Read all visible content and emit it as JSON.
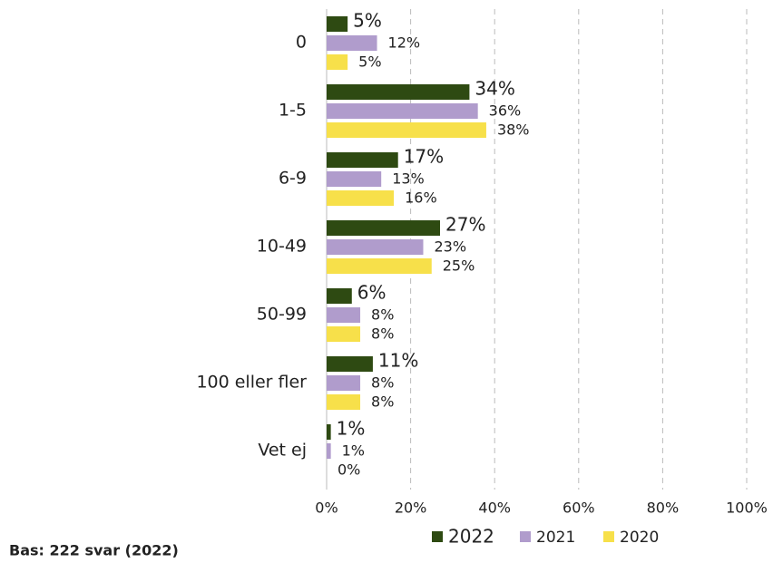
{
  "chart_data": {
    "type": "barh",
    "categories": [
      "0",
      "1-5",
      "6-9",
      "10-49",
      "50-99",
      "100 eller fler",
      "Vet ej"
    ],
    "series": [
      {
        "name": "2022",
        "color": "#2e4a12",
        "values": [
          5,
          34,
          17,
          27,
          6,
          11,
          1
        ],
        "value_labels": [
          "5%",
          "34%",
          "17%",
          "27%",
          "6%",
          "11%",
          "1%"
        ]
      },
      {
        "name": "2021",
        "color": "#b09ccc",
        "values": [
          12,
          36,
          13,
          23,
          8,
          8,
          1
        ],
        "value_labels": [
          "12%",
          "36%",
          "13%",
          "23%",
          "8%",
          "8%",
          "1%"
        ]
      },
      {
        "name": "2020",
        "color": "#f7e04a",
        "values": [
          5,
          38,
          16,
          25,
          8,
          8,
          0
        ],
        "value_labels": [
          "5%",
          "38%",
          "16%",
          "25%",
          "8%",
          "8%",
          "0%"
        ]
      }
    ],
    "xlim": [
      0,
      100
    ],
    "xticks": [
      {
        "value": 0,
        "label": "0%"
      },
      {
        "value": 20,
        "label": "20%"
      },
      {
        "value": 40,
        "label": "40%"
      },
      {
        "value": 60,
        "label": "60%"
      },
      {
        "value": 80,
        "label": "80%"
      },
      {
        "value": 100,
        "label": "100%"
      }
    ],
    "grid": true,
    "legend": "bottom",
    "footnote": "Bas: 222 svar (2022)"
  }
}
